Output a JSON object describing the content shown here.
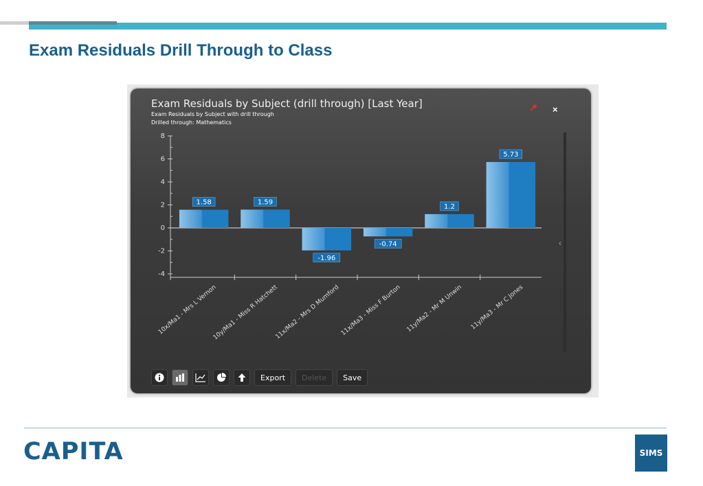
{
  "slide": {
    "title": "Exam Residuals Drill Through to Class",
    "logo": "CAPITA",
    "badge": "SIMS"
  },
  "panel": {
    "title": "Exam Residuals by Subject (drill through) [Last Year]",
    "subtitle": "Exam Residuals by Subject with drill through",
    "drill": "Drilled through: Mathematics",
    "close_label": "×"
  },
  "toolbar": {
    "buttons": [
      {
        "name": "info-icon"
      },
      {
        "name": "bar-chart-icon",
        "active": true
      },
      {
        "name": "line-chart-icon"
      },
      {
        "name": "pie-chart-icon"
      },
      {
        "name": "arrow-up-icon"
      }
    ],
    "export_label": "Export",
    "delete_label": "Delete",
    "save_label": "Save"
  },
  "colors": {
    "brand": "#1a5f8c",
    "accent": "#41b2c7",
    "bar": "#1f7ec2"
  },
  "chart_data": {
    "type": "bar",
    "categories": [
      "10x/Ma1 - Mrs L Vernon",
      "10y/Ma1 - Miss R Hatchett",
      "11x/Ma2 - Mrs D Mumford",
      "11x/Ma3 - Miss F Burton",
      "11y/Ma2 - Mr M Unwin",
      "11y/Ma3 - Mr C Jones"
    ],
    "values": [
      1.58,
      1.59,
      -1.96,
      -0.74,
      1.2,
      5.73
    ],
    "value_labels": [
      "1.58",
      "1.59",
      "-1.96",
      "-0.74",
      "1.2",
      "5.73"
    ],
    "yticks": [
      "8",
      "6",
      "4",
      "2",
      "0",
      "-2",
      "-4"
    ],
    "ylim": [
      -4,
      8
    ],
    "grid": false,
    "legend": "none"
  }
}
